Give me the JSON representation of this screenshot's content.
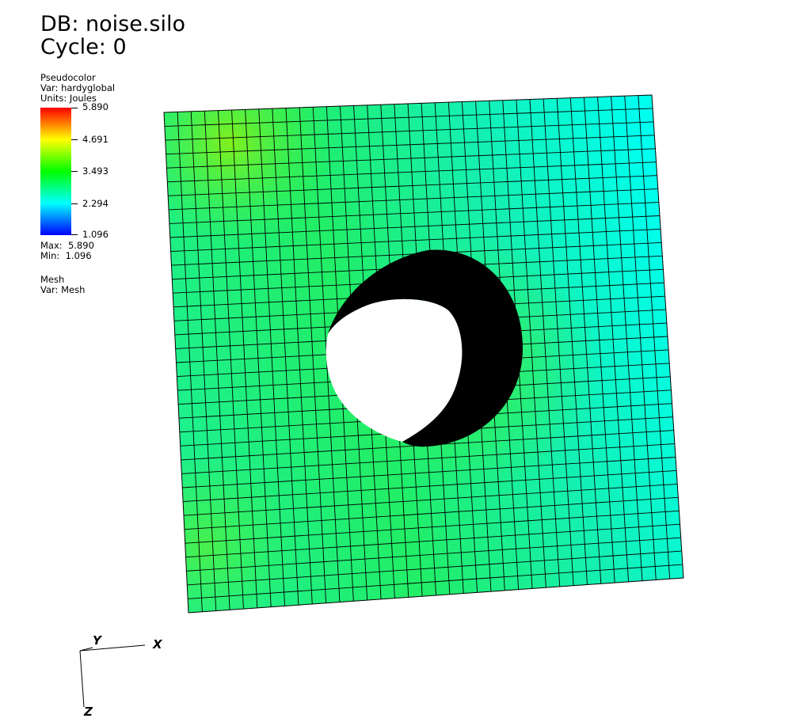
{
  "header": {
    "database": "DB: noise.silo",
    "cycle": "Cycle: 0"
  },
  "pseudocolor_legend": {
    "plot_type": "Pseudocolor",
    "variable": "Var: hardyglobal",
    "units": "Units: Joules",
    "colorbar_ticks": [
      "5.890",
      "4.691",
      "3.493",
      "2.294",
      "1.096"
    ],
    "max": "Max:  5.890",
    "min": "Min:  1.096",
    "colors": [
      "#ff0000",
      "#ffff00",
      "#00ff00",
      "#00ffff",
      "#0000ff"
    ]
  },
  "mesh_legend": {
    "plot_type": "Mesh",
    "variable": "Var: Mesh"
  },
  "axes_triad": {
    "y_label": "Y",
    "x_label": "X",
    "z_label": "Z"
  },
  "scene": {
    "mesh_divisions": 36,
    "hole_fill": "#000000",
    "surface_colors": {
      "cyan": "#00ffd8",
      "green": "#22f05a",
      "bright_green": "#6ef01a"
    }
  }
}
